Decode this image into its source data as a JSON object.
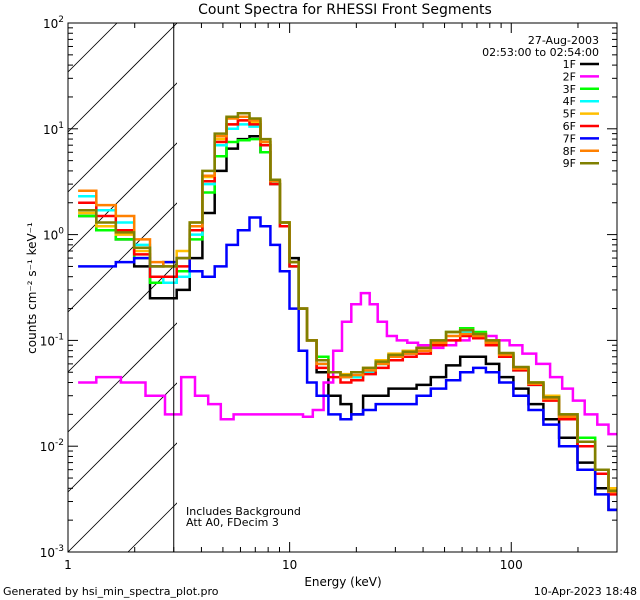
{
  "chart_data": {
    "type": "line",
    "title": "Count Spectra for RHESSI Front Segments",
    "xlabel": "Energy (keV)",
    "ylabel": "counts cm⁻² s⁻¹ keV⁻¹",
    "xscale": "log",
    "yscale": "log",
    "xlim": [
      1,
      300
    ],
    "ylim": [
      0.001,
      100
    ],
    "x_ticks": [
      {
        "v": 1,
        "label": "1"
      },
      {
        "v": 10,
        "label": "10"
      },
      {
        "v": 100,
        "label": "100"
      }
    ],
    "y_ticks": [
      {
        "v": 0.001,
        "base": "10",
        "exp": "-3"
      },
      {
        "v": 0.01,
        "base": "10",
        "exp": "-2"
      },
      {
        "v": 0.1,
        "base": "10",
        "exp": "-1"
      },
      {
        "v": 1,
        "base": "10",
        "exp": "0"
      },
      {
        "v": 10,
        "base": "10",
        "exp": "1"
      },
      {
        "v": 100,
        "base": "10",
        "exp": "2"
      }
    ],
    "hatched_below_energy": 3,
    "date": "27-Aug-2003",
    "time_range": "02:53:00 to 02:54:00",
    "notes": [
      "Includes Background",
      "Att A0, FDecim 3"
    ],
    "footer_left": "Generated by hsi_min_spectra_plot.pro",
    "footer_right": "10-Apr-2023 18:48",
    "series": [
      {
        "name": "1F",
        "color": "#000000",
        "x": [
          1.2,
          1.5,
          1.8,
          2.2,
          2.5,
          2.9,
          3.3,
          3.8,
          4.3,
          4.9,
          5.5,
          6.2,
          7,
          7.8,
          8.6,
          9.5,
          10.5,
          11.5,
          12.5,
          14,
          16,
          18,
          20,
          23,
          26,
          30,
          35,
          40,
          47,
          55,
          63,
          72,
          82,
          95,
          110,
          130,
          150,
          180,
          220,
          260,
          290
        ],
        "values": [
          1.5,
          1.1,
          0.9,
          0.5,
          0.25,
          0.25,
          0.3,
          0.6,
          1.6,
          4.0,
          6.5,
          8.0,
          8.5,
          6.0,
          3.0,
          1.3,
          0.6,
          0.2,
          0.1,
          0.05,
          0.03,
          0.025,
          0.02,
          0.03,
          0.03,
          0.035,
          0.035,
          0.038,
          0.045,
          0.058,
          0.07,
          0.07,
          0.06,
          0.045,
          0.035,
          0.025,
          0.018,
          0.012,
          0.007,
          0.004,
          0.0025
        ]
      },
      {
        "name": "2F",
        "color": "#ff00ff",
        "x": [
          1.2,
          1.5,
          2,
          2.5,
          3,
          3.5,
          4,
          4.6,
          5.2,
          6,
          7,
          8,
          9,
          10,
          11,
          12,
          13.5,
          15,
          16.5,
          18,
          20,
          22,
          24,
          26,
          29,
          32,
          36,
          40,
          46,
          53,
          60,
          70,
          80,
          92,
          105,
          120,
          140,
          160,
          180,
          200,
          230,
          260,
          290
        ],
        "values": [
          0.04,
          0.045,
          0.04,
          0.03,
          0.02,
          0.045,
          0.03,
          0.025,
          0.018,
          0.02,
          0.02,
          0.02,
          0.02,
          0.02,
          0.02,
          0.019,
          0.022,
          0.04,
          0.08,
          0.15,
          0.22,
          0.28,
          0.22,
          0.15,
          0.11,
          0.1,
          0.095,
          0.09,
          0.085,
          0.09,
          0.1,
          0.11,
          0.11,
          0.1,
          0.09,
          0.075,
          0.06,
          0.045,
          0.035,
          0.027,
          0.02,
          0.016,
          0.013
        ]
      },
      {
        "name": "3F",
        "color": "#00ff00",
        "x": [
          1.2,
          1.5,
          1.8,
          2.2,
          2.5,
          2.9,
          3.3,
          3.8,
          4.3,
          4.9,
          5.5,
          6.2,
          7,
          7.8,
          8.6,
          9.5,
          10.5,
          11.5,
          12.5,
          14,
          16,
          18,
          20,
          23,
          26,
          30,
          35,
          40,
          47,
          55,
          63,
          72,
          82,
          95,
          110,
          130,
          150,
          180,
          220,
          260,
          290
        ],
        "values": [
          1.5,
          1.1,
          0.9,
          0.6,
          0.35,
          0.35,
          0.45,
          0.9,
          2.5,
          5.5,
          7.5,
          7.8,
          8.0,
          6.0,
          3.0,
          1.3,
          0.5,
          0.2,
          0.1,
          0.07,
          0.05,
          0.045,
          0.045,
          0.05,
          0.06,
          0.07,
          0.075,
          0.08,
          0.1,
          0.12,
          0.13,
          0.12,
          0.1,
          0.075,
          0.055,
          0.04,
          0.03,
          0.02,
          0.012,
          0.006,
          0.004
        ]
      },
      {
        "name": "4F",
        "color": "#00ffff",
        "x": [
          1.2,
          1.5,
          1.8,
          2.2,
          2.5,
          2.9,
          3.3,
          3.8,
          4.3,
          4.9,
          5.5,
          6.2,
          7,
          7.8,
          8.6,
          9.5,
          10.5,
          11.5,
          12.5,
          14,
          16,
          18,
          20,
          23,
          26,
          30,
          35,
          40,
          47,
          55,
          63,
          72,
          82,
          95,
          110,
          130,
          150,
          180,
          220,
          260,
          290
        ],
        "values": [
          2.3,
          1.7,
          1.3,
          0.8,
          0.4,
          0.35,
          0.4,
          1.0,
          3.0,
          7.0,
          10.0,
          11.0,
          10.5,
          7.0,
          3.0,
          1.2,
          0.5,
          0.2,
          0.1,
          0.06,
          0.05,
          0.045,
          0.045,
          0.05,
          0.06,
          0.07,
          0.075,
          0.08,
          0.1,
          0.12,
          0.12,
          0.11,
          0.095,
          0.07,
          0.052,
          0.038,
          0.028,
          0.019,
          0.011,
          0.006,
          0.004
        ]
      },
      {
        "name": "5F",
        "color": "#ffbf00",
        "x": [
          1.2,
          1.5,
          1.8,
          2.2,
          2.5,
          2.9,
          3.3,
          3.8,
          4.3,
          4.9,
          5.5,
          6.2,
          7,
          7.8,
          8.6,
          9.5,
          10.5,
          11.5,
          12.5,
          14,
          16,
          18,
          20,
          23,
          26,
          30,
          35,
          40,
          47,
          55,
          63,
          72,
          82,
          95,
          110,
          130,
          150,
          180,
          220,
          260,
          290
        ],
        "values": [
          1.6,
          1.2,
          1.0,
          0.7,
          0.5,
          0.55,
          0.7,
          1.3,
          3.5,
          8.0,
          11.0,
          12.0,
          11.5,
          7.5,
          3.2,
          1.3,
          0.55,
          0.2,
          0.1,
          0.065,
          0.05,
          0.048,
          0.05,
          0.055,
          0.065,
          0.075,
          0.08,
          0.085,
          0.1,
          0.12,
          0.125,
          0.115,
          0.1,
          0.075,
          0.055,
          0.04,
          0.03,
          0.02,
          0.011,
          0.006,
          0.004
        ]
      },
      {
        "name": "6F",
        "color": "#ff0000",
        "x": [
          1.2,
          1.5,
          1.8,
          2.2,
          2.5,
          2.9,
          3.3,
          3.8,
          4.3,
          4.9,
          5.5,
          6.2,
          7,
          7.8,
          8.6,
          9.5,
          10.5,
          11.5,
          12.5,
          14,
          16,
          18,
          20,
          23,
          26,
          30,
          35,
          40,
          47,
          55,
          63,
          72,
          82,
          95,
          110,
          130,
          150,
          180,
          220,
          260,
          290
        ],
        "values": [
          2.0,
          1.5,
          1.1,
          0.65,
          0.4,
          0.4,
          0.5,
          1.1,
          3.2,
          7.5,
          11.0,
          12.0,
          11.0,
          7.0,
          3.0,
          1.2,
          0.5,
          0.2,
          0.1,
          0.055,
          0.045,
          0.04,
          0.042,
          0.048,
          0.055,
          0.065,
          0.07,
          0.075,
          0.09,
          0.1,
          0.11,
          0.105,
          0.09,
          0.07,
          0.052,
          0.038,
          0.027,
          0.018,
          0.01,
          0.0055,
          0.0035
        ]
      },
      {
        "name": "7F",
        "color": "#0000ff",
        "x": [
          1.2,
          1.5,
          1.8,
          2.2,
          2.5,
          2.9,
          3.3,
          3.8,
          4.3,
          4.9,
          5.5,
          6.2,
          7,
          7.8,
          8.6,
          9.5,
          10.5,
          11.5,
          12.5,
          14,
          16,
          18,
          20,
          23,
          26,
          30,
          35,
          40,
          47,
          55,
          63,
          72,
          82,
          95,
          110,
          130,
          150,
          180,
          220,
          260,
          290
        ],
        "values": [
          0.5,
          0.5,
          0.55,
          0.6,
          0.5,
          0.55,
          0.6,
          0.45,
          0.4,
          0.5,
          0.8,
          1.1,
          1.45,
          1.2,
          0.8,
          0.45,
          0.2,
          0.08,
          0.04,
          0.03,
          0.02,
          0.018,
          0.02,
          0.022,
          0.025,
          0.025,
          0.025,
          0.03,
          0.035,
          0.042,
          0.05,
          0.055,
          0.05,
          0.04,
          0.03,
          0.022,
          0.016,
          0.01,
          0.006,
          0.0035,
          0.0025
        ]
      },
      {
        "name": "8F",
        "color": "#ff8000",
        "x": [
          1.2,
          1.5,
          1.8,
          2.2,
          2.5,
          2.9,
          3.3,
          3.8,
          4.3,
          4.9,
          5.5,
          6.2,
          7,
          7.8,
          8.6,
          9.5,
          10.5,
          11.5,
          12.5,
          14,
          16,
          18,
          20,
          23,
          26,
          30,
          35,
          40,
          47,
          55,
          63,
          72,
          82,
          95,
          110,
          130,
          150,
          180,
          220,
          260,
          290
        ],
        "values": [
          2.6,
          1.9,
          1.5,
          0.9,
          0.55,
          0.5,
          0.6,
          1.2,
          3.6,
          8.5,
          12.5,
          13.0,
          12.0,
          7.5,
          3.2,
          1.3,
          0.55,
          0.2,
          0.1,
          0.06,
          0.05,
          0.045,
          0.047,
          0.052,
          0.06,
          0.07,
          0.075,
          0.08,
          0.095,
          0.11,
          0.115,
          0.11,
          0.095,
          0.073,
          0.054,
          0.039,
          0.028,
          0.019,
          0.011,
          0.006,
          0.0037
        ]
      },
      {
        "name": "9F",
        "color": "#808000",
        "x": [
          1.2,
          1.5,
          1.8,
          2.2,
          2.5,
          2.9,
          3.3,
          3.8,
          4.3,
          4.9,
          5.5,
          6.2,
          7,
          7.8,
          8.6,
          9.5,
          10.5,
          11.5,
          12.5,
          14,
          16,
          18,
          20,
          23,
          26,
          30,
          35,
          40,
          47,
          55,
          63,
          72,
          82,
          95,
          110,
          130,
          150,
          180,
          220,
          260,
          290
        ],
        "values": [
          1.7,
          1.3,
          1.05,
          0.75,
          0.5,
          0.5,
          0.6,
          1.3,
          4.0,
          9.0,
          13.0,
          14.0,
          12.5,
          8.0,
          3.3,
          1.3,
          0.55,
          0.2,
          0.1,
          0.065,
          0.05,
          0.047,
          0.05,
          0.055,
          0.063,
          0.073,
          0.078,
          0.085,
          0.1,
          0.12,
          0.125,
          0.115,
          0.1,
          0.076,
          0.056,
          0.04,
          0.029,
          0.02,
          0.011,
          0.006,
          0.0038
        ]
      }
    ]
  }
}
